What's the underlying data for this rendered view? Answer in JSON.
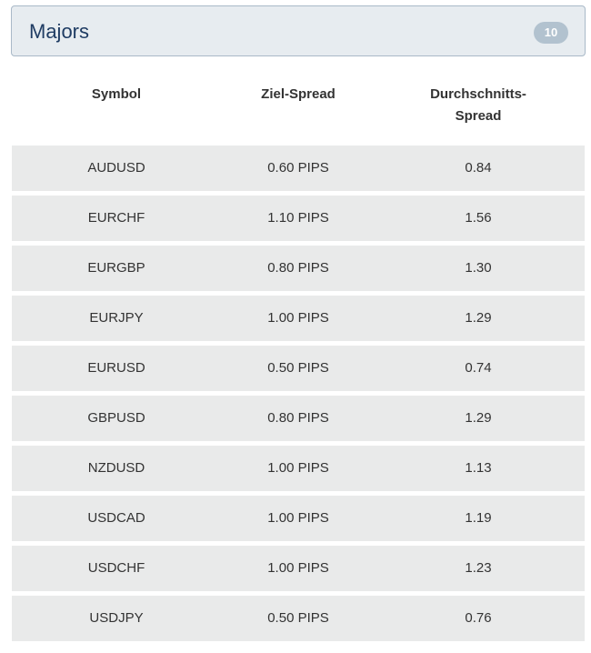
{
  "panel": {
    "title": "Majors",
    "count": "10"
  },
  "table": {
    "headers": [
      "Symbol",
      "Ziel-Spread",
      "Durchschnitts-Spread"
    ],
    "rows": [
      [
        "AUDUSD",
        "0.60 PIPS",
        "0.84"
      ],
      [
        "EURCHF",
        "1.10 PIPS",
        "1.56"
      ],
      [
        "EURGBP",
        "0.80 PIPS",
        "1.30"
      ],
      [
        "EURJPY",
        "1.00 PIPS",
        "1.29"
      ],
      [
        "EURUSD",
        "0.50 PIPS",
        "0.74"
      ],
      [
        "GBPUSD",
        "0.80 PIPS",
        "1.29"
      ],
      [
        "NZDUSD",
        "1.00 PIPS",
        "1.13"
      ],
      [
        "USDCAD",
        "1.00 PIPS",
        "1.19"
      ],
      [
        "USDCHF",
        "1.00 PIPS",
        "1.23"
      ],
      [
        "USDJPY",
        "0.50 PIPS",
        "0.76"
      ]
    ]
  },
  "colors": {
    "header_bg": "#e7ecf0",
    "header_border": "#a9b9c8",
    "title": "#1f3c63",
    "badge_bg": "#b2c2cf",
    "row_bg": "#e9eaea"
  }
}
